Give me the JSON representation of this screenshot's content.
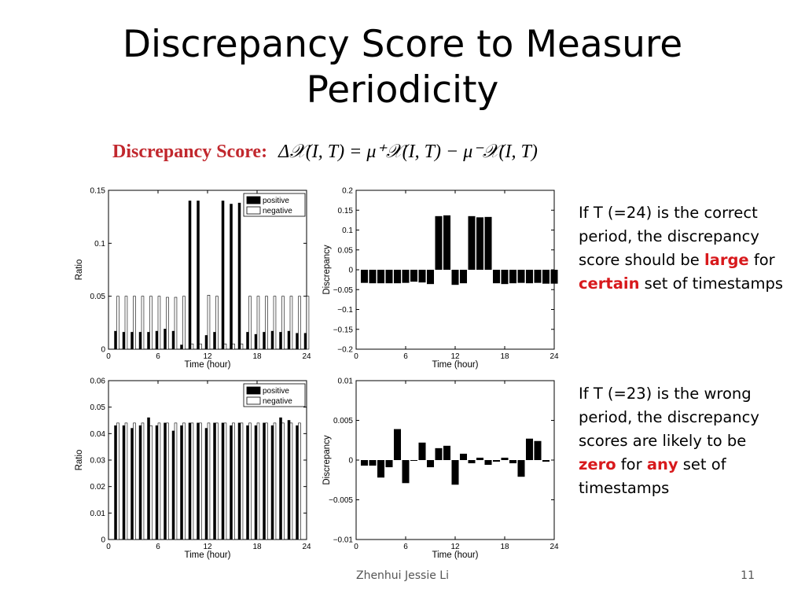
{
  "slide": {
    "title_line1": "Discrepancy Score to Measure",
    "title_line2": "Periodicity",
    "formula_label": "Discrepancy  Score:",
    "formula_text": "Δ𝒳(I, T) = μ⁺𝒳(I, T) − μ⁻𝒳(I, T)",
    "footer": "Zhenhui Jessie Li",
    "page_number": "11"
  },
  "side_text": {
    "top": [
      {
        "t": "If T (=24) is the correct period, the discrepancy score should be ",
        "hl": false
      },
      {
        "t": "large",
        "hl": true
      },
      {
        "t": " for ",
        "hl": false
      },
      {
        "t": "certain",
        "hl": true
      },
      {
        "t": " set of timestamps",
        "hl": false
      }
    ],
    "bottom": [
      {
        "t": "If T (=23) is the wrong period, the discrepancy scores are likely to be ",
        "hl": false
      },
      {
        "t": "zero",
        "hl": true
      },
      {
        "t": " for ",
        "hl": false
      },
      {
        "t": "any",
        "hl": true
      },
      {
        "t": " set of timestamps",
        "hl": false
      }
    ]
  },
  "colors": {
    "highlight": "#d8191c",
    "formula_label": "#c1272d",
    "bar_positive": "#000000",
    "bar_negative": "#ffffff"
  },
  "chart_data": [
    {
      "id": "ratio-t24",
      "type": "bar",
      "xlabel": "Time (hour)",
      "ylabel": "Ratio",
      "xlim": [
        0,
        24
      ],
      "ylim": [
        0,
        0.15
      ],
      "xticks": [
        "0",
        "6",
        "12",
        "18",
        "24"
      ],
      "yticks": [
        "0",
        "0.05",
        "0.1",
        "0.15"
      ],
      "legend_position": "top-right",
      "x": [
        1,
        2,
        3,
        4,
        5,
        6,
        7,
        8,
        9,
        10,
        11,
        12,
        13,
        14,
        15,
        16,
        17,
        18,
        19,
        20,
        21,
        22,
        23,
        24
      ],
      "series": [
        {
          "name": "positive",
          "values": [
            0.017,
            0.016,
            0.016,
            0.016,
            0.016,
            0.017,
            0.019,
            0.017,
            0.004,
            0.14,
            0.14,
            0.013,
            0.016,
            0.14,
            0.137,
            0.138,
            0.016,
            0.014,
            0.016,
            0.017,
            0.016,
            0.017,
            0.015,
            0.015
          ]
        },
        {
          "name": "negative",
          "values": [
            0.05,
            0.05,
            0.05,
            0.05,
            0.05,
            0.05,
            0.049,
            0.049,
            0.05,
            0.005,
            0.005,
            0.051,
            0.05,
            0.005,
            0.005,
            0.005,
            0.05,
            0.05,
            0.05,
            0.05,
            0.05,
            0.05,
            0.05,
            0.05
          ]
        }
      ]
    },
    {
      "id": "discrepancy-t24",
      "type": "bar",
      "xlabel": "Time (hour)",
      "ylabel": "Discrepancy",
      "xlim": [
        0,
        24
      ],
      "ylim": [
        -0.2,
        0.2
      ],
      "xticks": [
        "0",
        "6",
        "12",
        "18",
        "24"
      ],
      "yticks": [
        "0.2",
        "0.15",
        "0.1",
        "0.05",
        "0",
        "−0.05",
        "−0.1",
        "−0.15",
        "−0.2"
      ],
      "x": [
        1,
        2,
        3,
        4,
        5,
        6,
        7,
        8,
        9,
        10,
        11,
        12,
        13,
        14,
        15,
        16,
        17,
        18,
        19,
        20,
        21,
        22,
        23,
        24
      ],
      "values": [
        -0.033,
        -0.034,
        -0.034,
        -0.034,
        -0.034,
        -0.033,
        -0.03,
        -0.032,
        -0.036,
        0.135,
        0.137,
        -0.038,
        -0.034,
        0.135,
        0.132,
        0.133,
        -0.034,
        -0.036,
        -0.034,
        -0.033,
        -0.034,
        -0.033,
        -0.035,
        -0.035
      ]
    },
    {
      "id": "ratio-t23",
      "type": "bar",
      "xlabel": "Time (hour)",
      "ylabel": "Ratio",
      "xlim": [
        0,
        24
      ],
      "ylim": [
        0,
        0.06
      ],
      "xticks": [
        "0",
        "6",
        "12",
        "18",
        "24"
      ],
      "yticks": [
        "0",
        "0.01",
        "0.02",
        "0.03",
        "0.04",
        "0.05",
        "0.06"
      ],
      "legend_position": "top-right",
      "x": [
        1,
        2,
        3,
        4,
        5,
        6,
        7,
        8,
        9,
        10,
        11,
        12,
        13,
        14,
        15,
        16,
        17,
        18,
        19,
        20,
        21,
        22,
        23
      ],
      "series": [
        {
          "name": "positive",
          "values": [
            0.043,
            0.043,
            0.042,
            0.043,
            0.046,
            0.043,
            0.044,
            0.041,
            0.043,
            0.044,
            0.044,
            0.042,
            0.044,
            0.044,
            0.043,
            0.044,
            0.043,
            0.043,
            0.044,
            0.043,
            0.046,
            0.045,
            0.043
          ]
        },
        {
          "name": "negative",
          "values": [
            0.044,
            0.044,
            0.044,
            0.044,
            0.043,
            0.044,
            0.044,
            0.044,
            0.044,
            0.044,
            0.044,
            0.044,
            0.044,
            0.044,
            0.044,
            0.044,
            0.044,
            0.044,
            0.044,
            0.044,
            0.044,
            0.044,
            0.044
          ]
        }
      ]
    },
    {
      "id": "discrepancy-t23",
      "type": "bar",
      "xlabel": "Time (hour)",
      "ylabel": "Discrepancy",
      "xlim": [
        0,
        24
      ],
      "ylim": [
        -0.01,
        0.01
      ],
      "xticks": [
        "0",
        "6",
        "12",
        "18",
        "24"
      ],
      "yticks": [
        "0.01",
        "0.005",
        "0",
        "−0.005",
        "−0.01"
      ],
      "x": [
        1,
        2,
        3,
        4,
        5,
        6,
        7,
        8,
        9,
        10,
        11,
        12,
        13,
        14,
        15,
        16,
        17,
        18,
        19,
        20,
        21,
        22,
        23
      ],
      "values": [
        -0.0007,
        -0.0007,
        -0.0022,
        -0.0009,
        0.0039,
        -0.0029,
        -0.0001,
        0.0022,
        -0.0009,
        0.0015,
        0.0018,
        -0.0031,
        0.0008,
        -0.0004,
        0.0003,
        -0.0006,
        -0.0002,
        0.0003,
        -0.0004,
        -0.0021,
        0.0027,
        0.0024,
        -0.0002
      ]
    }
  ]
}
